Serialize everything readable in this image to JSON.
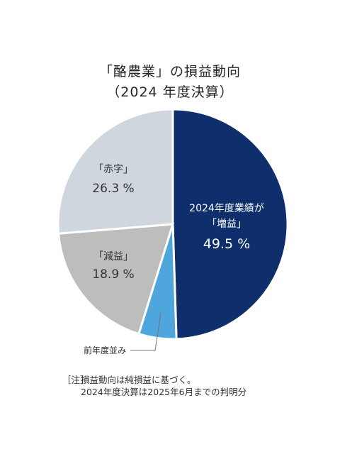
{
  "title_line1": "「酪農業」の損益動向",
  "title_line2": "（2024 年度決算）",
  "chart_data": {
    "type": "pie",
    "title": "「酪農業」の損益動向（2024 年度決算）",
    "slices": [
      {
        "label_lines": [
          "2024年度業績が",
          "「増益」"
        ],
        "value": 49.5,
        "value_text": "49.5 %",
        "color": "#0e2f6b",
        "label_color": "#ffffff"
      },
      {
        "label_lines": [
          "前年度並み"
        ],
        "value": 5.3,
        "value_text": "",
        "color": "#4ea6dc",
        "label_color": "#333333"
      },
      {
        "label_lines": [
          "「減益」"
        ],
        "value": 18.9,
        "value_text": "18.9 %",
        "color": "#bdbdbd",
        "label_color": "#333333"
      },
      {
        "label_lines": [
          "「赤字」"
        ],
        "value": 26.3,
        "value_text": "26.3 %",
        "color": "#cfd6dd",
        "label_color": "#333333"
      }
    ]
  },
  "note": {
    "tag": "［注］",
    "line1": "損益動向は純損益に基づく。",
    "line2": "2024年度決算は2025年6月までの判明分"
  }
}
